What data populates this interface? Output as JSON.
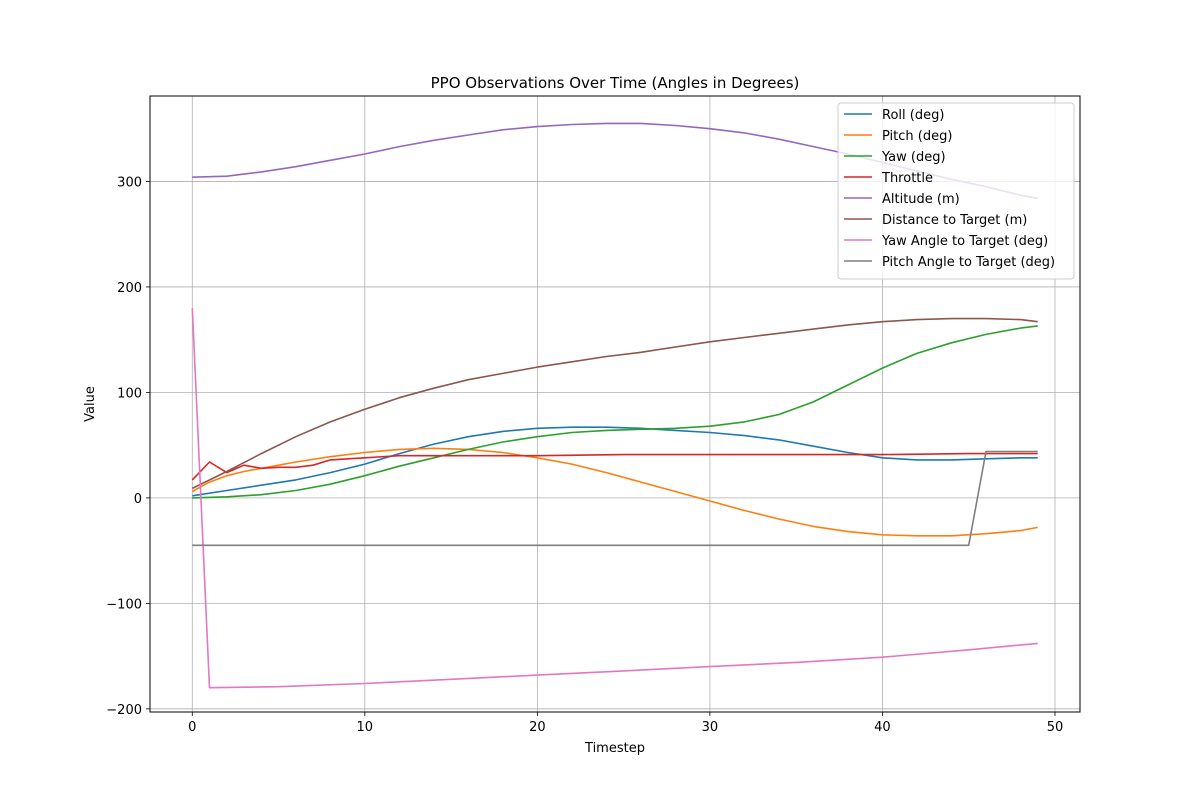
{
  "chart_data": {
    "type": "line",
    "title": "PPO Observations Over Time (Angles in Degrees)",
    "xlabel": "Timestep",
    "ylabel": "Value",
    "xlim": [
      -2.45,
      51.45
    ],
    "ylim": [
      -203.0,
      381.0
    ],
    "xticks": [
      0,
      10,
      20,
      30,
      40,
      50
    ],
    "yticks": [
      -200,
      -100,
      0,
      100,
      200,
      300
    ],
    "xtick_labels": [
      "0",
      "10",
      "20",
      "30",
      "40",
      "50"
    ],
    "ytick_labels": [
      "−200",
      "−100",
      "0",
      "100",
      "200",
      "300"
    ],
    "grid": true,
    "legend_position": "top-right",
    "series": [
      {
        "name": "Roll (deg)",
        "color": "#1f77b4",
        "x": [
          0,
          2,
          4,
          6,
          8,
          10,
          12,
          14,
          16,
          18,
          20,
          22,
          24,
          26,
          28,
          30,
          32,
          34,
          36,
          38,
          40,
          42,
          44,
          46,
          48,
          49
        ],
        "y": [
          2,
          7,
          12,
          17,
          24,
          32,
          42,
          51,
          58,
          63,
          66,
          67,
          67,
          66,
          64,
          62,
          59,
          55,
          49,
          43,
          38,
          36,
          36,
          37,
          38,
          38
        ]
      },
      {
        "name": "Pitch (deg)",
        "color": "#ff7f0e",
        "x": [
          0,
          1,
          2,
          3,
          4,
          6,
          8,
          10,
          12,
          14,
          16,
          18,
          20,
          22,
          24,
          26,
          28,
          30,
          32,
          34,
          36,
          38,
          40,
          42,
          44,
          46,
          48,
          49
        ],
        "y": [
          6,
          15,
          21,
          25,
          28,
          34,
          39,
          43,
          46,
          47,
          46,
          43,
          38,
          32,
          24,
          15,
          6,
          -3,
          -12,
          -20,
          -27,
          -32,
          -35,
          -36,
          -36,
          -34,
          -31,
          -28
        ]
      },
      {
        "name": "Yaw (deg)",
        "color": "#2ca02c",
        "x": [
          0,
          2,
          4,
          6,
          8,
          10,
          12,
          14,
          16,
          18,
          20,
          22,
          24,
          26,
          28,
          30,
          32,
          34,
          36,
          38,
          40,
          42,
          44,
          46,
          48,
          49
        ],
        "y": [
          0,
          1,
          3,
          7,
          13,
          21,
          30,
          38,
          46,
          53,
          58,
          62,
          64,
          65,
          66,
          68,
          72,
          79,
          91,
          107,
          123,
          137,
          147,
          155,
          161,
          163
        ]
      },
      {
        "name": "Throttle",
        "color": "#d62728",
        "x": [
          0,
          1,
          2,
          3,
          4,
          5,
          6,
          7,
          8,
          10,
          12,
          15,
          20,
          25,
          30,
          35,
          40,
          45,
          49
        ],
        "y": [
          17,
          34,
          24,
          31,
          28,
          29,
          29,
          31,
          36,
          38,
          40,
          40,
          40,
          41,
          41,
          41,
          41,
          42,
          42
        ]
      },
      {
        "name": "Altitude (m)",
        "color": "#9467bd",
        "x": [
          0,
          2,
          4,
          6,
          8,
          10,
          12,
          14,
          16,
          18,
          20,
          22,
          24,
          26,
          28,
          30,
          32,
          34,
          36,
          38,
          40,
          42,
          44,
          46,
          48,
          49
        ],
        "y": [
          304,
          305,
          309,
          314,
          320,
          326,
          333,
          339,
          344,
          349,
          352,
          354,
          355,
          355,
          353,
          350,
          346,
          340,
          333,
          326,
          318,
          310,
          302,
          295,
          287,
          284
        ]
      },
      {
        "name": "Distance to Target (m)",
        "color": "#8c564b",
        "x": [
          0,
          2,
          4,
          6,
          8,
          10,
          12,
          14,
          16,
          18,
          20,
          22,
          24,
          26,
          28,
          30,
          32,
          34,
          36,
          38,
          40,
          42,
          44,
          46,
          48,
          49
        ],
        "y": [
          9,
          25,
          42,
          58,
          72,
          84,
          95,
          104,
          112,
          118,
          124,
          129,
          134,
          138,
          143,
          148,
          152,
          156,
          160,
          164,
          167,
          169,
          170,
          170,
          169,
          167
        ]
      },
      {
        "name": "Yaw Angle to Target (deg)",
        "color": "#e377c2",
        "x": [
          0,
          1,
          5,
          10,
          15,
          20,
          25,
          30,
          35,
          40,
          45,
          49
        ],
        "y": [
          180,
          -180,
          -179,
          -176,
          -172,
          -168,
          -164,
          -160,
          -156,
          -151,
          -144,
          -138
        ]
      },
      {
        "name": "Pitch Angle to Target (deg)",
        "color": "#7f7f7f",
        "x": [
          0,
          10,
          20,
          30,
          40,
          45,
          46,
          47,
          49
        ],
        "y": [
          -45,
          -45,
          -45,
          -45,
          -45,
          -45,
          44,
          44,
          44
        ]
      }
    ]
  }
}
